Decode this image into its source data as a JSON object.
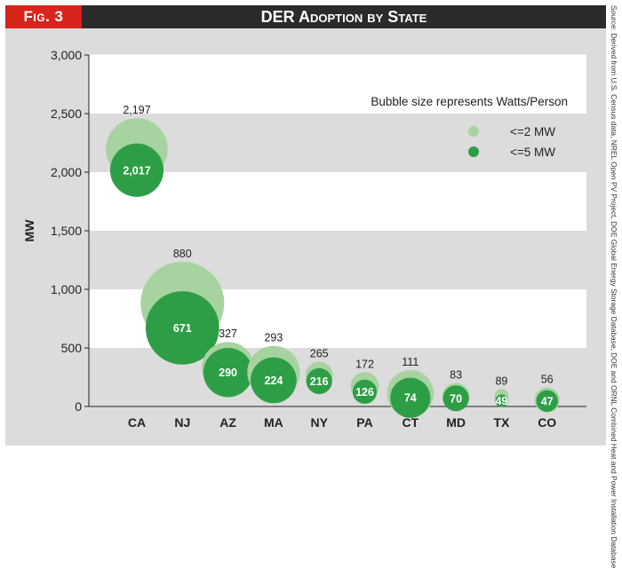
{
  "header": {
    "fig_label": "Fig. 3",
    "title": "DER Adoption by State"
  },
  "source_note": "Source: Derived from U.S. Census data, NREL Open PV Project, DOE Global Energy Storage Database, DOE and ORNL Combined Heat and Power Installation Database",
  "colors": {
    "light_bubble": "#a7d3a0",
    "dark_bubble": "#2e9e46",
    "header_bg": "#2b2b2b",
    "fig_tag_bg": "#d9241c",
    "panel_bg": "#dcdcdc",
    "stripe": "#ffffff"
  },
  "chart_data": {
    "type": "bubble",
    "ylabel": "MW",
    "ylim": [
      0,
      3000
    ],
    "yticks": [
      0,
      500,
      1000,
      1500,
      2000,
      2500,
      3000
    ],
    "ytick_labels": [
      "0",
      "500",
      "1,000",
      "1,500",
      "2,000",
      "2,500",
      "3,000"
    ],
    "categories": [
      "CA",
      "NJ",
      "AZ",
      "MA",
      "NY",
      "PA",
      "CT",
      "MD",
      "TX",
      "CO"
    ],
    "legend_title": "Bubble size represents Watts/Person",
    "series": [
      {
        "name": "<=2 MW",
        "color_key": "light_bubble",
        "values": [
          2197,
          880,
          327,
          293,
          265,
          172,
          111,
          83,
          89,
          56
        ],
        "labels": [
          "2,197",
          "880",
          "327",
          "293",
          "265",
          "172",
          "111",
          "83",
          "89",
          "56"
        ],
        "relative_size": [
          0.74,
          1.0,
          0.63,
          0.63,
          0.33,
          0.34,
          0.56,
          0.33,
          0.17,
          0.3
        ]
      },
      {
        "name": "<=5 MW",
        "color_key": "dark_bubble",
        "values": [
          2017,
          671,
          290,
          224,
          216,
          126,
          74,
          70,
          49,
          47
        ],
        "labels": [
          "2,017",
          "671",
          "290",
          "224",
          "216",
          "126",
          "74",
          "70",
          "49",
          "47"
        ],
        "relative_size": [
          0.64,
          0.88,
          0.59,
          0.55,
          0.31,
          0.29,
          0.48,
          0.31,
          0.15,
          0.26
        ]
      }
    ]
  }
}
